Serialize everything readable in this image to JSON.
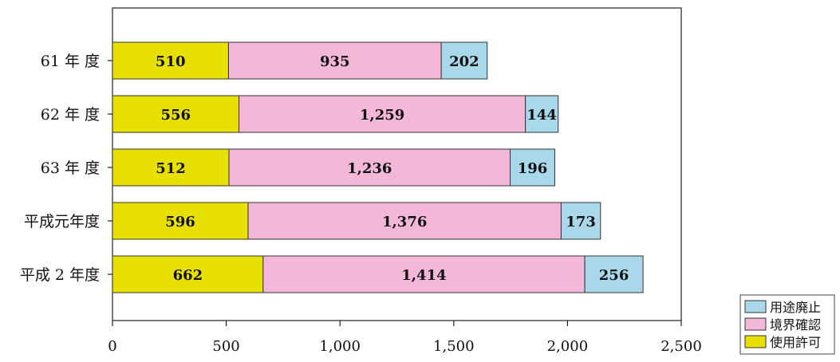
{
  "chart_data": {
    "type": "bar",
    "orientation": "horizontal",
    "stacked": true,
    "title": "",
    "xlabel": "",
    "ylabel": "",
    "categories": [
      "61 年 度",
      "62 年 度",
      "63 年 度",
      "平成元年度",
      "平成 2 年度"
    ],
    "series": [
      {
        "name": "使用許可",
        "color": "#e8e000",
        "values": [
          510,
          556,
          512,
          596,
          662
        ],
        "labels": [
          "510",
          "556",
          "512",
          "596",
          "662"
        ]
      },
      {
        "name": "境界確認",
        "color": "#f3b8d8",
        "values": [
          935,
          1259,
          1236,
          1376,
          1414
        ],
        "labels": [
          "935",
          "1,259",
          "1,236",
          "1,376",
          "1,414"
        ]
      },
      {
        "name": "用途廃止",
        "color": "#a8d8ea",
        "values": [
          202,
          144,
          196,
          173,
          256
        ],
        "labels": [
          "202",
          "144",
          "196",
          "173",
          "256"
        ]
      }
    ],
    "xlim": [
      0,
      2500
    ],
    "xticks": [
      0,
      500,
      1000,
      1500,
      2000,
      2500
    ],
    "xtick_labels": [
      "0",
      "500",
      "1,000",
      "1,500",
      "2,000",
      "2,500"
    ],
    "grid": false,
    "legend_position": "bottom-right",
    "legend_order": [
      "用途廃止",
      "境界確認",
      "使用許可"
    ]
  }
}
